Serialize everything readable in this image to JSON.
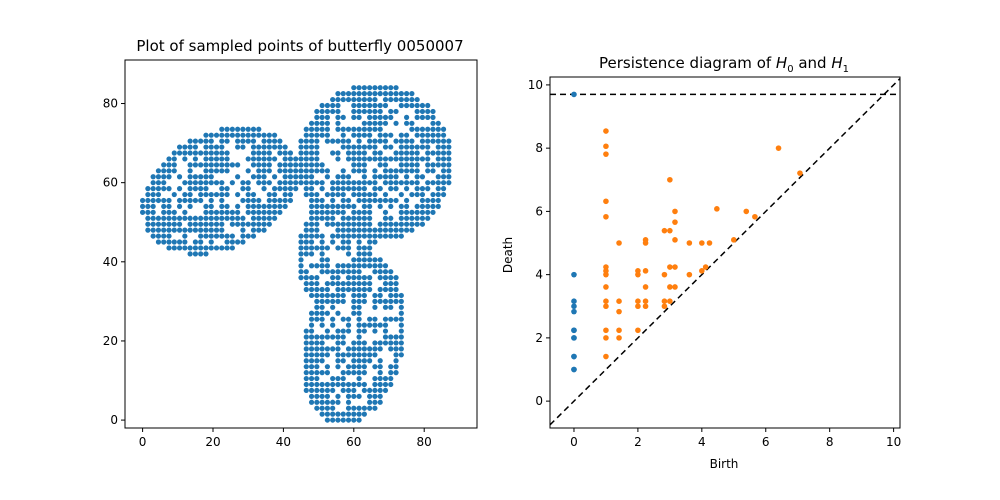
{
  "chart_data": [
    {
      "type": "scatter",
      "title": "Plot of sampled points of butterfly 0050007",
      "xlabel": "",
      "ylabel": "",
      "xlim": [
        -5,
        95
      ],
      "ylim": [
        -2,
        91
      ],
      "x_ticks": [
        0,
        20,
        40,
        60,
        80
      ],
      "y_ticks": [
        0,
        20,
        40,
        60,
        80
      ],
      "grid": false,
      "point_color": "#1f77b4",
      "grid_spacing": 1.5,
      "shape": {
        "wing_upper_left": {
          "center": [
            22,
            58
          ],
          "radii": [
            23,
            15
          ],
          "rotation_deg": 20
        },
        "wing_upper_right": {
          "center": [
            66,
            65
          ],
          "radii": [
            22,
            20
          ],
          "rotation_deg": 0
        },
        "wing_lower": {
          "center": [
            60,
            20
          ],
          "radii": [
            14,
            22
          ],
          "rotation_deg": -15
        },
        "body": {
          "center": [
            55,
            45
          ],
          "radii": [
            10,
            16
          ],
          "rotation_deg": -20
        }
      }
    },
    {
      "type": "scatter",
      "title_prefix": "Persistence diagram of ",
      "title_h0": "H",
      "title_sub0": "0",
      "title_mid": " and ",
      "title_h1": "H",
      "title_sub1": "1",
      "xlabel": "Birth",
      "ylabel": "Death",
      "xlim": [
        -0.75,
        10.2
      ],
      "ylim": [
        -0.85,
        10.25
      ],
      "x_ticks": [
        0,
        2,
        4,
        6,
        8,
        10
      ],
      "y_ticks": [
        0,
        2,
        4,
        6,
        8,
        10
      ],
      "infinity_line": 9.7,
      "diagonal": true,
      "grid": false,
      "series": [
        {
          "color": "#1f77b4",
          "points": [
            [
              0,
              1.0
            ],
            [
              0,
              1.0
            ],
            [
              0,
              1.41
            ],
            [
              0,
              1.41
            ],
            [
              0,
              2.0
            ],
            [
              0,
              2.0
            ],
            [
              0,
              2.24
            ],
            [
              0,
              2.24
            ],
            [
              0,
              2.83
            ],
            [
              0,
              3.0
            ],
            [
              0,
              3.16
            ],
            [
              0,
              4.0
            ],
            [
              0,
              9.7
            ]
          ]
        },
        {
          "color": "#ff7f0e",
          "points": [
            [
              1.0,
              8.54
            ],
            [
              1.0,
              8.06
            ],
            [
              1.0,
              7.81
            ],
            [
              1.0,
              6.32
            ],
            [
              1.0,
              5.83
            ],
            [
              1.0,
              4.24
            ],
            [
              1.0,
              4.12
            ],
            [
              1.0,
              4.0
            ],
            [
              1.0,
              3.61
            ],
            [
              1.0,
              3.16
            ],
            [
              1.0,
              3.0
            ],
            [
              1.0,
              2.24
            ],
            [
              1.0,
              2.0
            ],
            [
              1.0,
              1.41
            ],
            [
              1.41,
              5.0
            ],
            [
              1.41,
              3.16
            ],
            [
              1.41,
              2.83
            ],
            [
              1.41,
              2.24
            ],
            [
              1.41,
              2.0
            ],
            [
              2.0,
              4.12
            ],
            [
              2.0,
              4.0
            ],
            [
              2.0,
              3.16
            ],
            [
              2.0,
              3.0
            ],
            [
              2.0,
              2.24
            ],
            [
              2.24,
              5.1
            ],
            [
              2.24,
              5.0
            ],
            [
              2.24,
              4.12
            ],
            [
              2.24,
              3.61
            ],
            [
              2.24,
              3.16
            ],
            [
              2.24,
              3.0
            ],
            [
              2.83,
              5.39
            ],
            [
              2.83,
              4.0
            ],
            [
              2.83,
              3.16
            ],
            [
              2.83,
              3.0
            ],
            [
              3.0,
              7.0
            ],
            [
              3.0,
              5.39
            ],
            [
              3.0,
              4.24
            ],
            [
              3.0,
              3.61
            ],
            [
              3.0,
              3.16
            ],
            [
              3.16,
              6.0
            ],
            [
              3.16,
              5.66
            ],
            [
              3.16,
              5.1
            ],
            [
              3.16,
              4.24
            ],
            [
              3.16,
              3.61
            ],
            [
              3.61,
              5.0
            ],
            [
              3.61,
              4.0
            ],
            [
              4.0,
              5.0
            ],
            [
              4.0,
              4.12
            ],
            [
              4.12,
              4.24
            ],
            [
              4.24,
              5.0
            ],
            [
              4.47,
              6.08
            ],
            [
              5.0,
              5.1
            ],
            [
              5.39,
              6.0
            ],
            [
              5.66,
              5.83
            ],
            [
              6.4,
              8.0
            ],
            [
              7.07,
              7.21
            ]
          ]
        }
      ]
    }
  ]
}
